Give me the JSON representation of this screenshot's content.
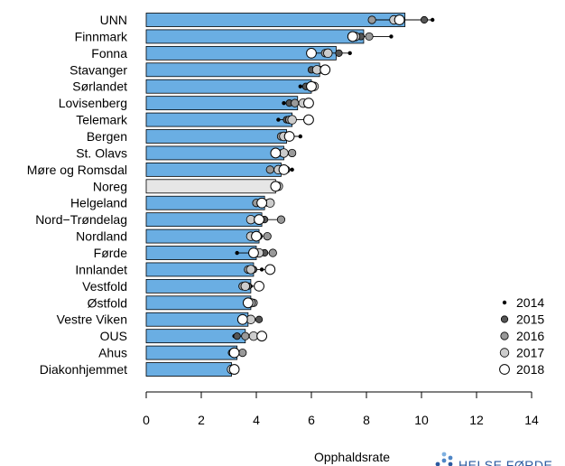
{
  "chart_data": {
    "type": "bar",
    "xlabel": "Opphaldsrate",
    "xlim": [
      0,
      14
    ],
    "x_ticks": [
      0,
      2,
      4,
      6,
      8,
      10,
      12,
      14
    ],
    "categories": [
      "UNN",
      "Finnmark",
      "Fonna",
      "Stavanger",
      "Sørlandet",
      "Lovisenberg",
      "Telemark",
      "Bergen",
      "St. Olavs",
      "Møre og Romsdal",
      "Noreg",
      "Helgeland",
      "Nord−Trøndelag",
      "Nordland",
      "Førde",
      "Innlandet",
      "Vestfold",
      "Østfold",
      "Vestre Viken",
      "OUS",
      "Ahus",
      "Diakonhjemmet"
    ],
    "values": [
      9.4,
      7.9,
      6.9,
      6.3,
      6.0,
      5.5,
      5.3,
      5.1,
      5.0,
      4.9,
      4.7,
      4.3,
      4.2,
      4.1,
      4.0,
      3.9,
      3.8,
      3.8,
      3.7,
      3.6,
      3.3,
      3.1
    ],
    "highlight_category": "Noreg",
    "bar_color": "#6aaee3",
    "highlight_color": "#e6e6e6",
    "series": [
      {
        "name": "2014",
        "values": [
          10.4,
          8.9,
          7.4,
          6.6,
          5.6,
          5.0,
          4.8,
          5.6,
          5.3,
          5.3,
          4.6,
          4.1,
          4.2,
          4.0,
          3.3,
          4.2,
          3.8,
          3.8,
          3.9,
          3.2,
          3.3,
          3.3
        ]
      },
      {
        "name": "2015",
        "values": [
          10.1,
          7.8,
          7.0,
          6.0,
          5.8,
          5.2,
          5.1,
          5.2,
          4.9,
          5.1,
          4.7,
          4.4,
          4.3,
          4.1,
          4.3,
          3.9,
          3.7,
          3.8,
          4.1,
          3.3,
          3.1,
          3.1
        ]
      },
      {
        "name": "2016",
        "values": [
          8.2,
          8.1,
          6.5,
          6.3,
          6.0,
          5.4,
          5.2,
          4.9,
          5.3,
          4.5,
          4.7,
          4.0,
          4.9,
          4.4,
          4.6,
          3.7,
          3.5,
          3.9,
          3.8,
          3.6,
          3.5,
          3.2
        ]
      },
      {
        "name": "2017",
        "values": [
          9.0,
          7.6,
          6.6,
          6.2,
          6.1,
          5.7,
          5.3,
          5.0,
          5.0,
          4.8,
          4.8,
          4.5,
          3.8,
          3.8,
          4.1,
          3.8,
          3.6,
          3.8,
          3.8,
          3.9,
          3.2,
          3.1
        ]
      },
      {
        "name": "2018",
        "values": [
          9.2,
          7.5,
          6.0,
          6.5,
          6.0,
          5.9,
          5.9,
          5.2,
          4.7,
          5.0,
          4.7,
          4.2,
          4.1,
          4.0,
          3.9,
          4.5,
          4.1,
          3.7,
          3.5,
          4.2,
          3.2,
          3.2
        ]
      }
    ],
    "legend_position": "bottom-right",
    "marker_colors": {
      "2014": "#000000",
      "2015": "#555555",
      "2016": "#999999",
      "2017": "#cccccc",
      "2018": "#ffffff"
    }
  },
  "logo": {
    "text": "HELSE FØRDE"
  }
}
